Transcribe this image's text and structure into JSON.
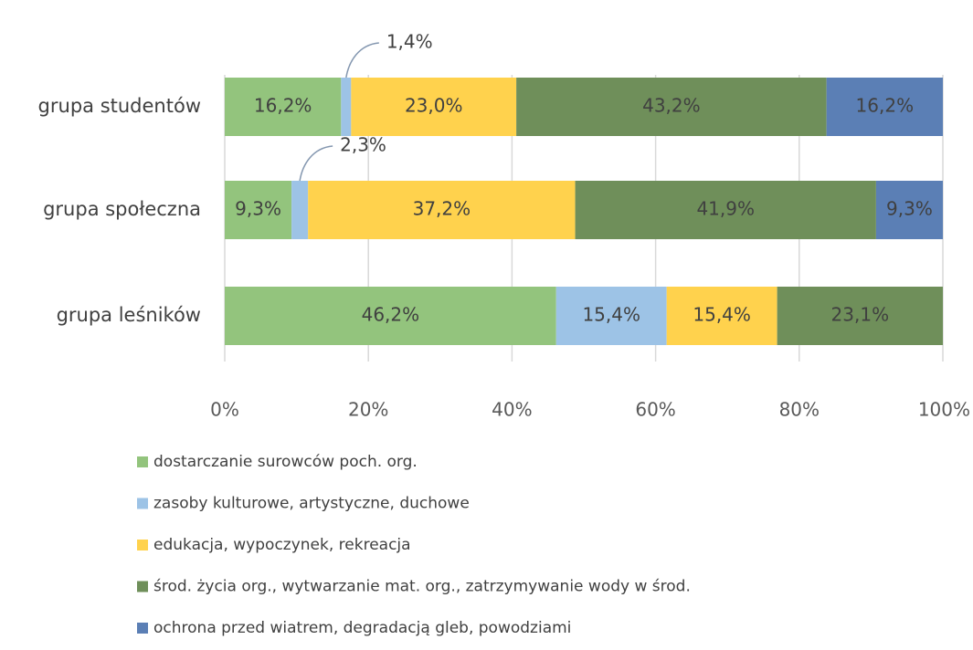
{
  "chart_data": {
    "type": "bar",
    "orientation": "horizontal",
    "stacked": "percent",
    "title": "",
    "xlabel": "",
    "ylabel": "",
    "xlim": [
      0,
      100
    ],
    "x_ticks": [
      "0%",
      "20%",
      "40%",
      "60%",
      "80%",
      "100%"
    ],
    "grid": true,
    "legend_position": "bottom",
    "categories": [
      "grupa studentów",
      "grupa społeczna",
      "grupa leśników"
    ],
    "series": [
      {
        "name": "dostarczanie surowców poch. org.",
        "color": "#93c47d",
        "values": [
          16.2,
          9.3,
          46.2
        ],
        "labels": [
          "16,2%",
          "9,3%",
          "46,2%"
        ]
      },
      {
        "name": "zasoby kulturowe, artystyczne, duchowe",
        "color": "#9dc3e6",
        "values": [
          1.4,
          2.3,
          15.4
        ],
        "labels": [
          "1,4%",
          "2,3%",
          "15,4%"
        ],
        "callout": [
          true,
          true,
          false
        ]
      },
      {
        "name": "edukacja, wypoczynek, rekreacja",
        "color": "#ffd24d",
        "values": [
          23.0,
          37.2,
          15.4
        ],
        "labels": [
          "23,0%",
          "37,2%",
          "15,4%"
        ]
      },
      {
        "name": "środ. życia org., wytwarzanie mat. org., zatrzymywanie wody w środ.",
        "color": "#6f8f5a",
        "values": [
          43.2,
          41.9,
          23.1
        ],
        "labels": [
          "43,2%",
          "41,9%",
          "23,1%"
        ]
      },
      {
        "name": "ochrona przed wiatrem, degradacją gleb, powodziami",
        "color": "#5b7fb5",
        "values": [
          16.2,
          9.3,
          0
        ],
        "labels": [
          "16,2%",
          "9,3%",
          ""
        ]
      }
    ]
  }
}
